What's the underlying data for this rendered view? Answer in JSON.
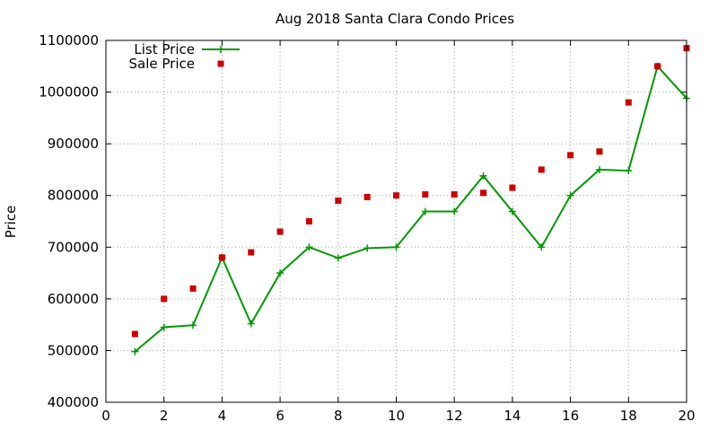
{
  "chart_data": {
    "type": "line",
    "title": "Aug 2018 Santa Clara Condo Prices",
    "xlabel": "",
    "ylabel": "Price",
    "xlim": [
      0,
      20
    ],
    "ylim": [
      400000,
      1100000
    ],
    "x_ticks": [
      0,
      2,
      4,
      6,
      8,
      10,
      12,
      14,
      16,
      18,
      20
    ],
    "y_ticks": [
      400000,
      500000,
      600000,
      700000,
      800000,
      900000,
      1000000,
      1100000
    ],
    "grid": true,
    "legend_position": "top-left",
    "series": [
      {
        "name": "List Price",
        "style": "line-with-plus-markers",
        "color": "#009900",
        "points": [
          [
            1,
            498000
          ],
          [
            2,
            545000
          ],
          [
            3,
            549000
          ],
          [
            4,
            680000
          ],
          [
            5,
            552000
          ],
          [
            6,
            650000
          ],
          [
            7,
            700000
          ],
          [
            8,
            679000
          ],
          [
            9,
            698000
          ],
          [
            10,
            700000
          ],
          [
            11,
            769000
          ],
          [
            12,
            769000
          ],
          [
            13,
            838000
          ],
          [
            14,
            769000
          ],
          [
            15,
            700000
          ],
          [
            16,
            800000
          ],
          [
            17,
            850000
          ],
          [
            18,
            848000
          ],
          [
            19,
            1050000
          ],
          [
            20,
            988000
          ]
        ]
      },
      {
        "name": "Sale Price",
        "style": "square-markers",
        "color": "#cc0000",
        "points": [
          [
            1,
            532000
          ],
          [
            2,
            600000
          ],
          [
            3,
            620000
          ],
          [
            4,
            680000
          ],
          [
            5,
            690000
          ],
          [
            6,
            730000
          ],
          [
            7,
            750000
          ],
          [
            8,
            790000
          ],
          [
            9,
            797000
          ],
          [
            10,
            800000
          ],
          [
            11,
            802000
          ],
          [
            12,
            802000
          ],
          [
            13,
            805000
          ],
          [
            14,
            815000
          ],
          [
            15,
            850000
          ],
          [
            16,
            878000
          ],
          [
            17,
            885000
          ],
          [
            18,
            980000
          ],
          [
            19,
            1050000
          ],
          [
            20,
            1085000
          ]
        ]
      }
    ]
  }
}
